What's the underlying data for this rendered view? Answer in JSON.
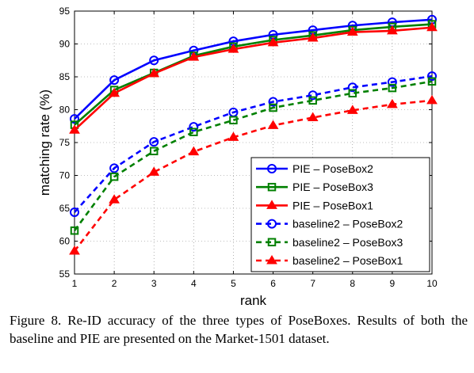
{
  "chart_data": {
    "type": "line",
    "xlabel": "rank",
    "ylabel": "matching rate (%)",
    "x": [
      1,
      2,
      3,
      4,
      5,
      6,
      7,
      8,
      9,
      10
    ],
    "xlim": [
      1,
      10
    ],
    "ylim": [
      55,
      95
    ],
    "xticks": [
      "1",
      "2",
      "3",
      "4",
      "5",
      "6",
      "7",
      "8",
      "9",
      "10"
    ],
    "yticks": [
      "55",
      "60",
      "65",
      "70",
      "75",
      "80",
      "85",
      "90",
      "95"
    ],
    "grid": true,
    "legend_position": "bottom-right",
    "series": [
      {
        "name": "PIE – PoseBox2",
        "values": [
          78.6,
          84.5,
          87.5,
          89.0,
          90.4,
          91.4,
          92.1,
          92.8,
          93.3,
          93.7
        ],
        "color": "#0000ff",
        "marker": "circle",
        "line": "solid"
      },
      {
        "name": "PIE – PoseBox3",
        "values": [
          77.7,
          83.0,
          85.6,
          88.2,
          89.6,
          90.6,
          91.3,
          92.1,
          92.6,
          93.0
        ],
        "color": "#008000",
        "marker": "square",
        "line": "solid"
      },
      {
        "name": "PIE – PoseBox1",
        "values": [
          76.9,
          82.5,
          85.5,
          88.0,
          89.2,
          90.2,
          90.9,
          91.8,
          92.0,
          92.5
        ],
        "color": "#ff0000",
        "marker": "triangle",
        "line": "solid"
      },
      {
        "name": "baseline2 – PoseBox2",
        "values": [
          64.4,
          71.1,
          75.1,
          77.4,
          79.6,
          81.2,
          82.2,
          83.4,
          84.2,
          85.1
        ],
        "color": "#0000ff",
        "marker": "circle",
        "line": "dashed"
      },
      {
        "name": "baseline2 – PoseBox3",
        "values": [
          61.6,
          69.8,
          73.7,
          76.6,
          78.4,
          80.3,
          81.4,
          82.5,
          83.3,
          84.3
        ],
        "color": "#008000",
        "marker": "square",
        "line": "dashed"
      },
      {
        "name": "baseline2 – PoseBox1",
        "values": [
          58.5,
          66.3,
          70.5,
          73.6,
          75.8,
          77.6,
          78.8,
          79.9,
          80.8,
          81.4
        ],
        "color": "#ff0000",
        "marker": "triangle",
        "line": "dashed"
      }
    ]
  },
  "caption": "Figure 8. Re-ID accuracy of the three types of PoseBoxes. Results of both the baseline and PIE are presented on the Market-1501 dataset."
}
